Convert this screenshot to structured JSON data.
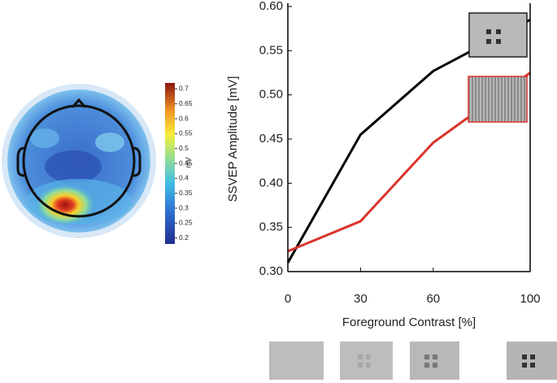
{
  "chart_data": [
    {
      "type": "line",
      "x": [
        0,
        30,
        60,
        100
      ],
      "xlim": [
        0,
        100
      ],
      "xticks": [
        0,
        30,
        60,
        100
      ],
      "ylim": [
        0.3,
        0.6
      ],
      "yticks": [
        {
          "value": 0.3,
          "label": "0.30"
        },
        0.35,
        {
          "value": 0.4,
          "label": "0.40"
        },
        0.45,
        {
          "value": 0.5,
          "label": "0.50"
        },
        0.55,
        {
          "value": 0.6,
          "label": "0.60"
        }
      ],
      "xlabel": "Foreground Contrast [%]",
      "ylabel": "SSVEP Amplitude [mV]",
      "series": [
        {
          "color": "#000000",
          "values": [
            0.31,
            0.455,
            0.527,
            0.585
          ]
        },
        {
          "color": "#d9342b",
          "values": [
            0.323,
            0.357,
            0.446,
            0.525
          ]
        }
      ]
    },
    {
      "type": "colorbar",
      "label": "mV",
      "ylim": [
        0.18,
        0.72
      ],
      "yticks": [
        0.2,
        0.25,
        0.3,
        0.35,
        0.4,
        0.45,
        0.5,
        0.55,
        0.6,
        0.65,
        0.7
      ]
    }
  ]
}
